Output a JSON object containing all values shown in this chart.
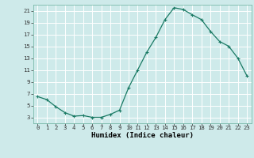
{
  "x": [
    0,
    1,
    2,
    3,
    4,
    5,
    6,
    7,
    8,
    9,
    10,
    11,
    12,
    13,
    14,
    15,
    16,
    17,
    18,
    19,
    20,
    21,
    22,
    23
  ],
  "y": [
    6.5,
    6.0,
    4.8,
    3.8,
    3.2,
    3.3,
    3.0,
    3.0,
    3.5,
    4.2,
    8.0,
    11.0,
    14.0,
    16.5,
    19.5,
    21.5,
    21.2,
    20.3,
    19.5,
    17.5,
    15.8,
    15.0,
    13.0,
    10.0
  ],
  "line_color": "#1a7a64",
  "marker": "+",
  "marker_size": 3,
  "marker_lw": 0.8,
  "line_width": 0.9,
  "bg_color": "#ceeaea",
  "grid_color": "#b0d8d8",
  "xlabel": "Humidex (Indice chaleur)",
  "xlim": [
    -0.5,
    23.5
  ],
  "ylim": [
    2,
    22
  ],
  "xtick_labels": [
    "0",
    "1",
    "2",
    "3",
    "4",
    "5",
    "6",
    "7",
    "8",
    "9",
    "10",
    "11",
    "12",
    "13",
    "14",
    "15",
    "16",
    "17",
    "18",
    "19",
    "20",
    "21",
    "22",
    "23"
  ],
  "ytick_values": [
    3,
    5,
    7,
    9,
    11,
    13,
    15,
    17,
    19,
    21
  ],
  "axis_fontsize": 6.0,
  "tick_fontsize": 5.2,
  "xlabel_fontsize": 6.5
}
